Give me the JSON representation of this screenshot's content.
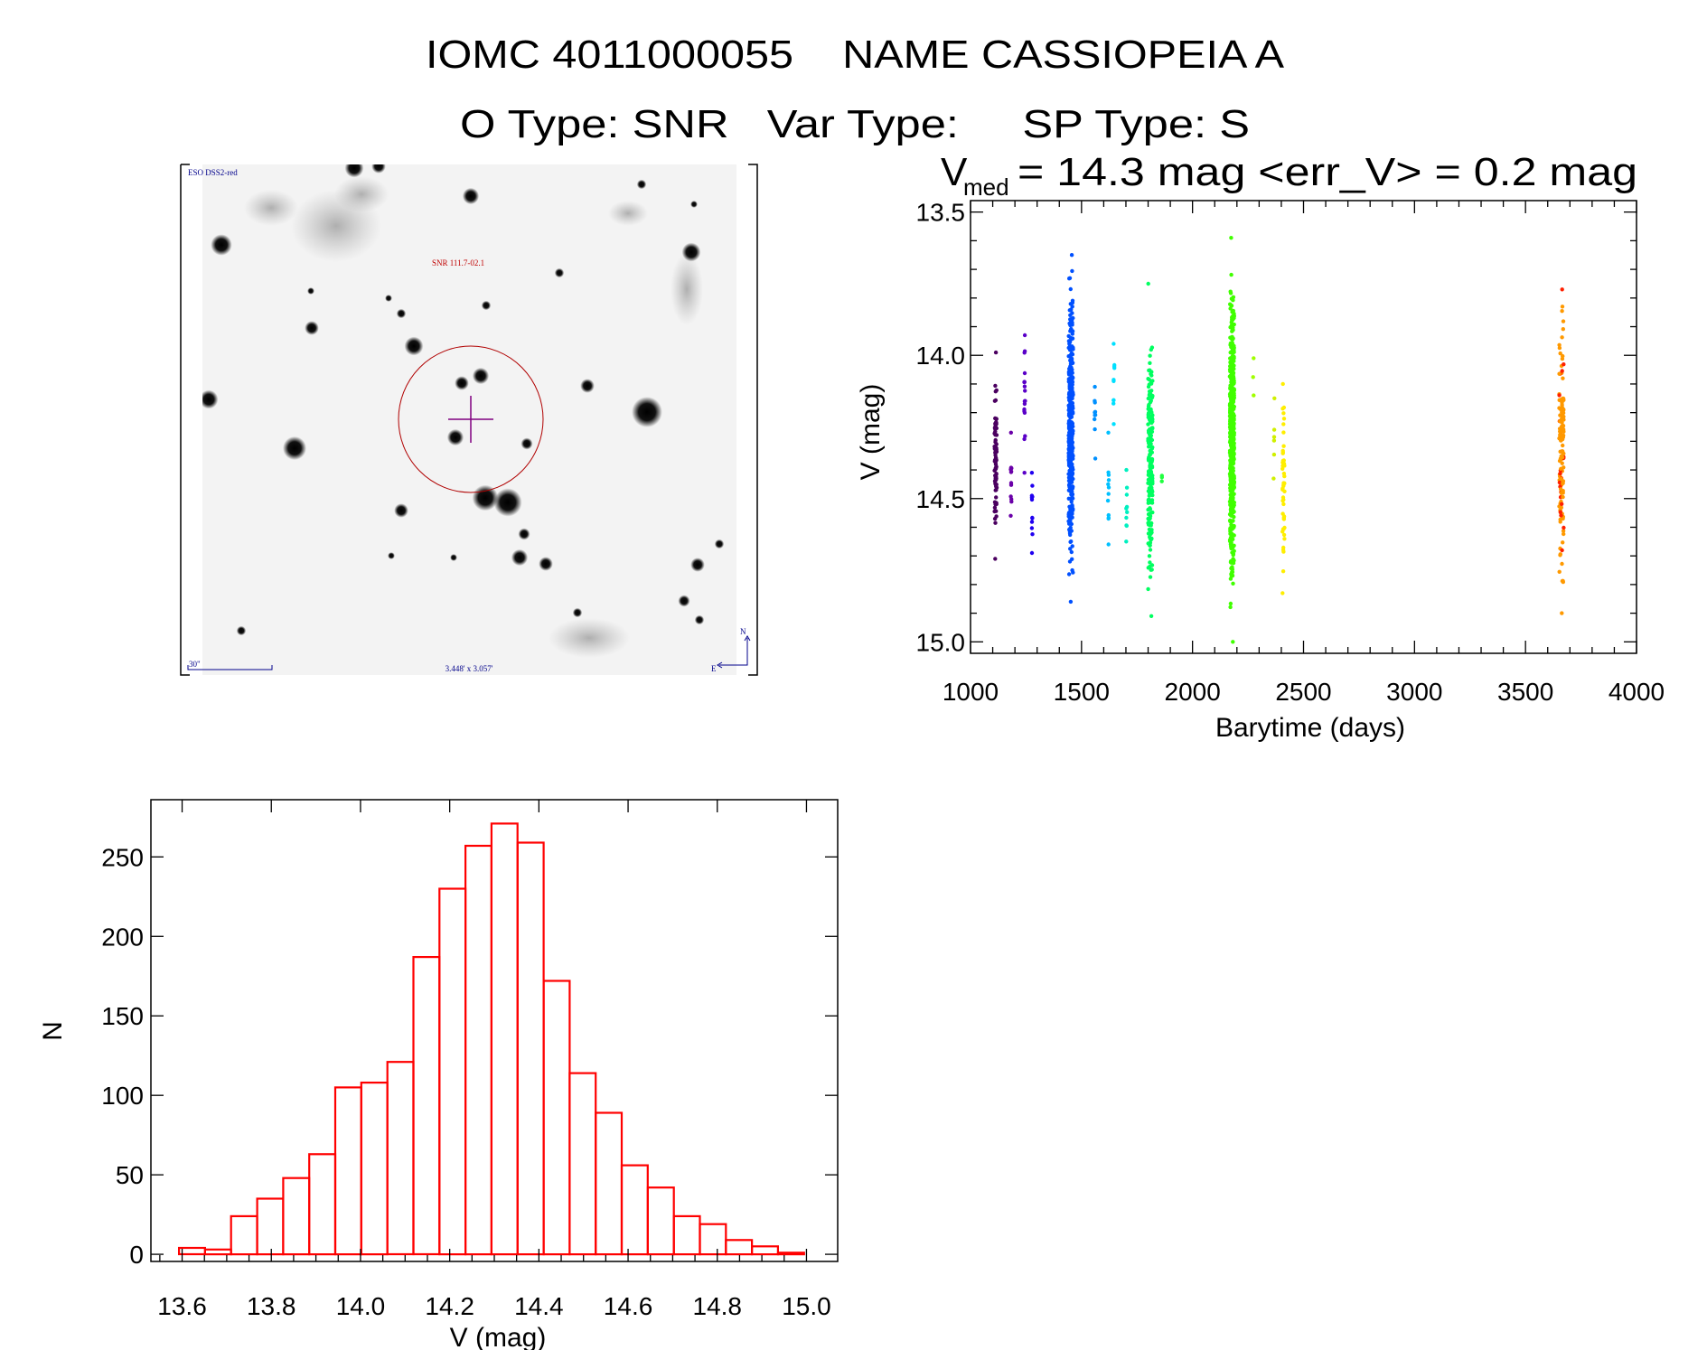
{
  "header": {
    "title_line1": "IOMC 4011000055    NAME CASSIOPEIA A",
    "title_line2": "O Type: SNR   Var Type:     SP Type: S",
    "vmed_symbol": "V",
    "vmed_subscript": "med",
    "vmed_text": " = 14.3 mag <err_V> = 0.2 mag"
  },
  "sky_image": {
    "survey_label": "ESO DSS2-red",
    "object_label": "SNR 111.7-02.1",
    "scale_label": "30\"",
    "field_size_label": "3.448' x 3.057'",
    "north_label": "N",
    "east_label": "E",
    "label_color": "#00008b",
    "object_color": "#c00000",
    "crosshair_color": "#800080"
  },
  "chart_data": [
    {
      "type": "scatter",
      "title": "",
      "xlabel": "Barytime (days)",
      "ylabel": "V (mag)",
      "xlim": [
        1000,
        4000
      ],
      "ylim": [
        13.46,
        15.04
      ],
      "y_inverted": true,
      "grid": false,
      "x_ticks": [
        "1000",
        "1500",
        "2000",
        "2500",
        "3000",
        "3500",
        "4000"
      ],
      "y_ticks": [
        "13.5",
        "14.0",
        "14.5",
        "15.0"
      ],
      "seasons": [
        {
          "x": 1113,
          "mag_min": 13.99,
          "mag_max": 14.71,
          "n": 80,
          "color": "#4b0060"
        },
        {
          "x": 1183,
          "mag_min": 14.27,
          "mag_max": 14.56,
          "n": 12,
          "color": "#6a00a8"
        },
        {
          "x": 1244,
          "mag_min": 13.93,
          "mag_max": 14.41,
          "n": 18,
          "color": "#5a00c8"
        },
        {
          "x": 1277,
          "mag_min": 14.41,
          "mag_max": 14.69,
          "n": 12,
          "color": "#2000f0"
        },
        {
          "x": 1452,
          "mag_min": 13.65,
          "mag_max": 14.86,
          "n": 400,
          "color": "#0050ff"
        },
        {
          "x": 1560,
          "mag_min": 14.11,
          "mag_max": 14.36,
          "n": 10,
          "color": "#0090ff"
        },
        {
          "x": 1621,
          "mag_min": 14.27,
          "mag_max": 14.66,
          "n": 12,
          "color": "#00c0ff"
        },
        {
          "x": 1646,
          "mag_min": 13.96,
          "mag_max": 14.24,
          "n": 10,
          "color": "#00e0ff"
        },
        {
          "x": 1703,
          "mag_min": 14.4,
          "mag_max": 14.65,
          "n": 10,
          "color": "#00f0c0"
        },
        {
          "x": 1810,
          "mag_min": 13.75,
          "mag_max": 14.91,
          "n": 200,
          "color": "#00ff60"
        },
        {
          "x": 1863,
          "mag_min": 14.42,
          "mag_max": 14.44,
          "n": 3,
          "color": "#20ff40"
        },
        {
          "x": 2178,
          "mag_min": 13.59,
          "mag_max": 15.0,
          "n": 500,
          "color": "#40ff00"
        },
        {
          "x": 2274,
          "mag_min": 14.01,
          "mag_max": 14.14,
          "n": 3,
          "color": "#a0ff00"
        },
        {
          "x": 2367,
          "mag_min": 14.15,
          "mag_max": 14.43,
          "n": 6,
          "color": "#d0f000"
        },
        {
          "x": 2410,
          "mag_min": 14.1,
          "mag_max": 14.83,
          "n": 50,
          "color": "#ffee00"
        },
        {
          "x": 3662,
          "mag_min": 13.77,
          "mag_max": 14.9,
          "n": 150,
          "color": "#ff9900"
        }
      ]
    },
    {
      "type": "bar",
      "title": "",
      "xlabel": "V (mag)",
      "ylabel": "N",
      "xlim": [
        13.53,
        15.07
      ],
      "ylim": [
        -4.5,
        286
      ],
      "grid": false,
      "bar_color": "#ff0000",
      "bin_start": 13.593,
      "bin_width": 0.0584,
      "values": [
        4,
        3,
        24,
        35,
        48,
        63,
        105,
        108,
        121,
        187,
        230,
        257,
        271,
        259,
        172,
        114,
        89,
        56,
        42,
        24,
        19,
        9,
        5,
        1
      ],
      "x_ticks": [
        "13.6",
        "13.8",
        "14.0",
        "14.2",
        "14.4",
        "14.6",
        "14.8",
        "15.0"
      ],
      "y_ticks": [
        "0",
        "50",
        "100",
        "150",
        "200",
        "250"
      ]
    }
  ]
}
